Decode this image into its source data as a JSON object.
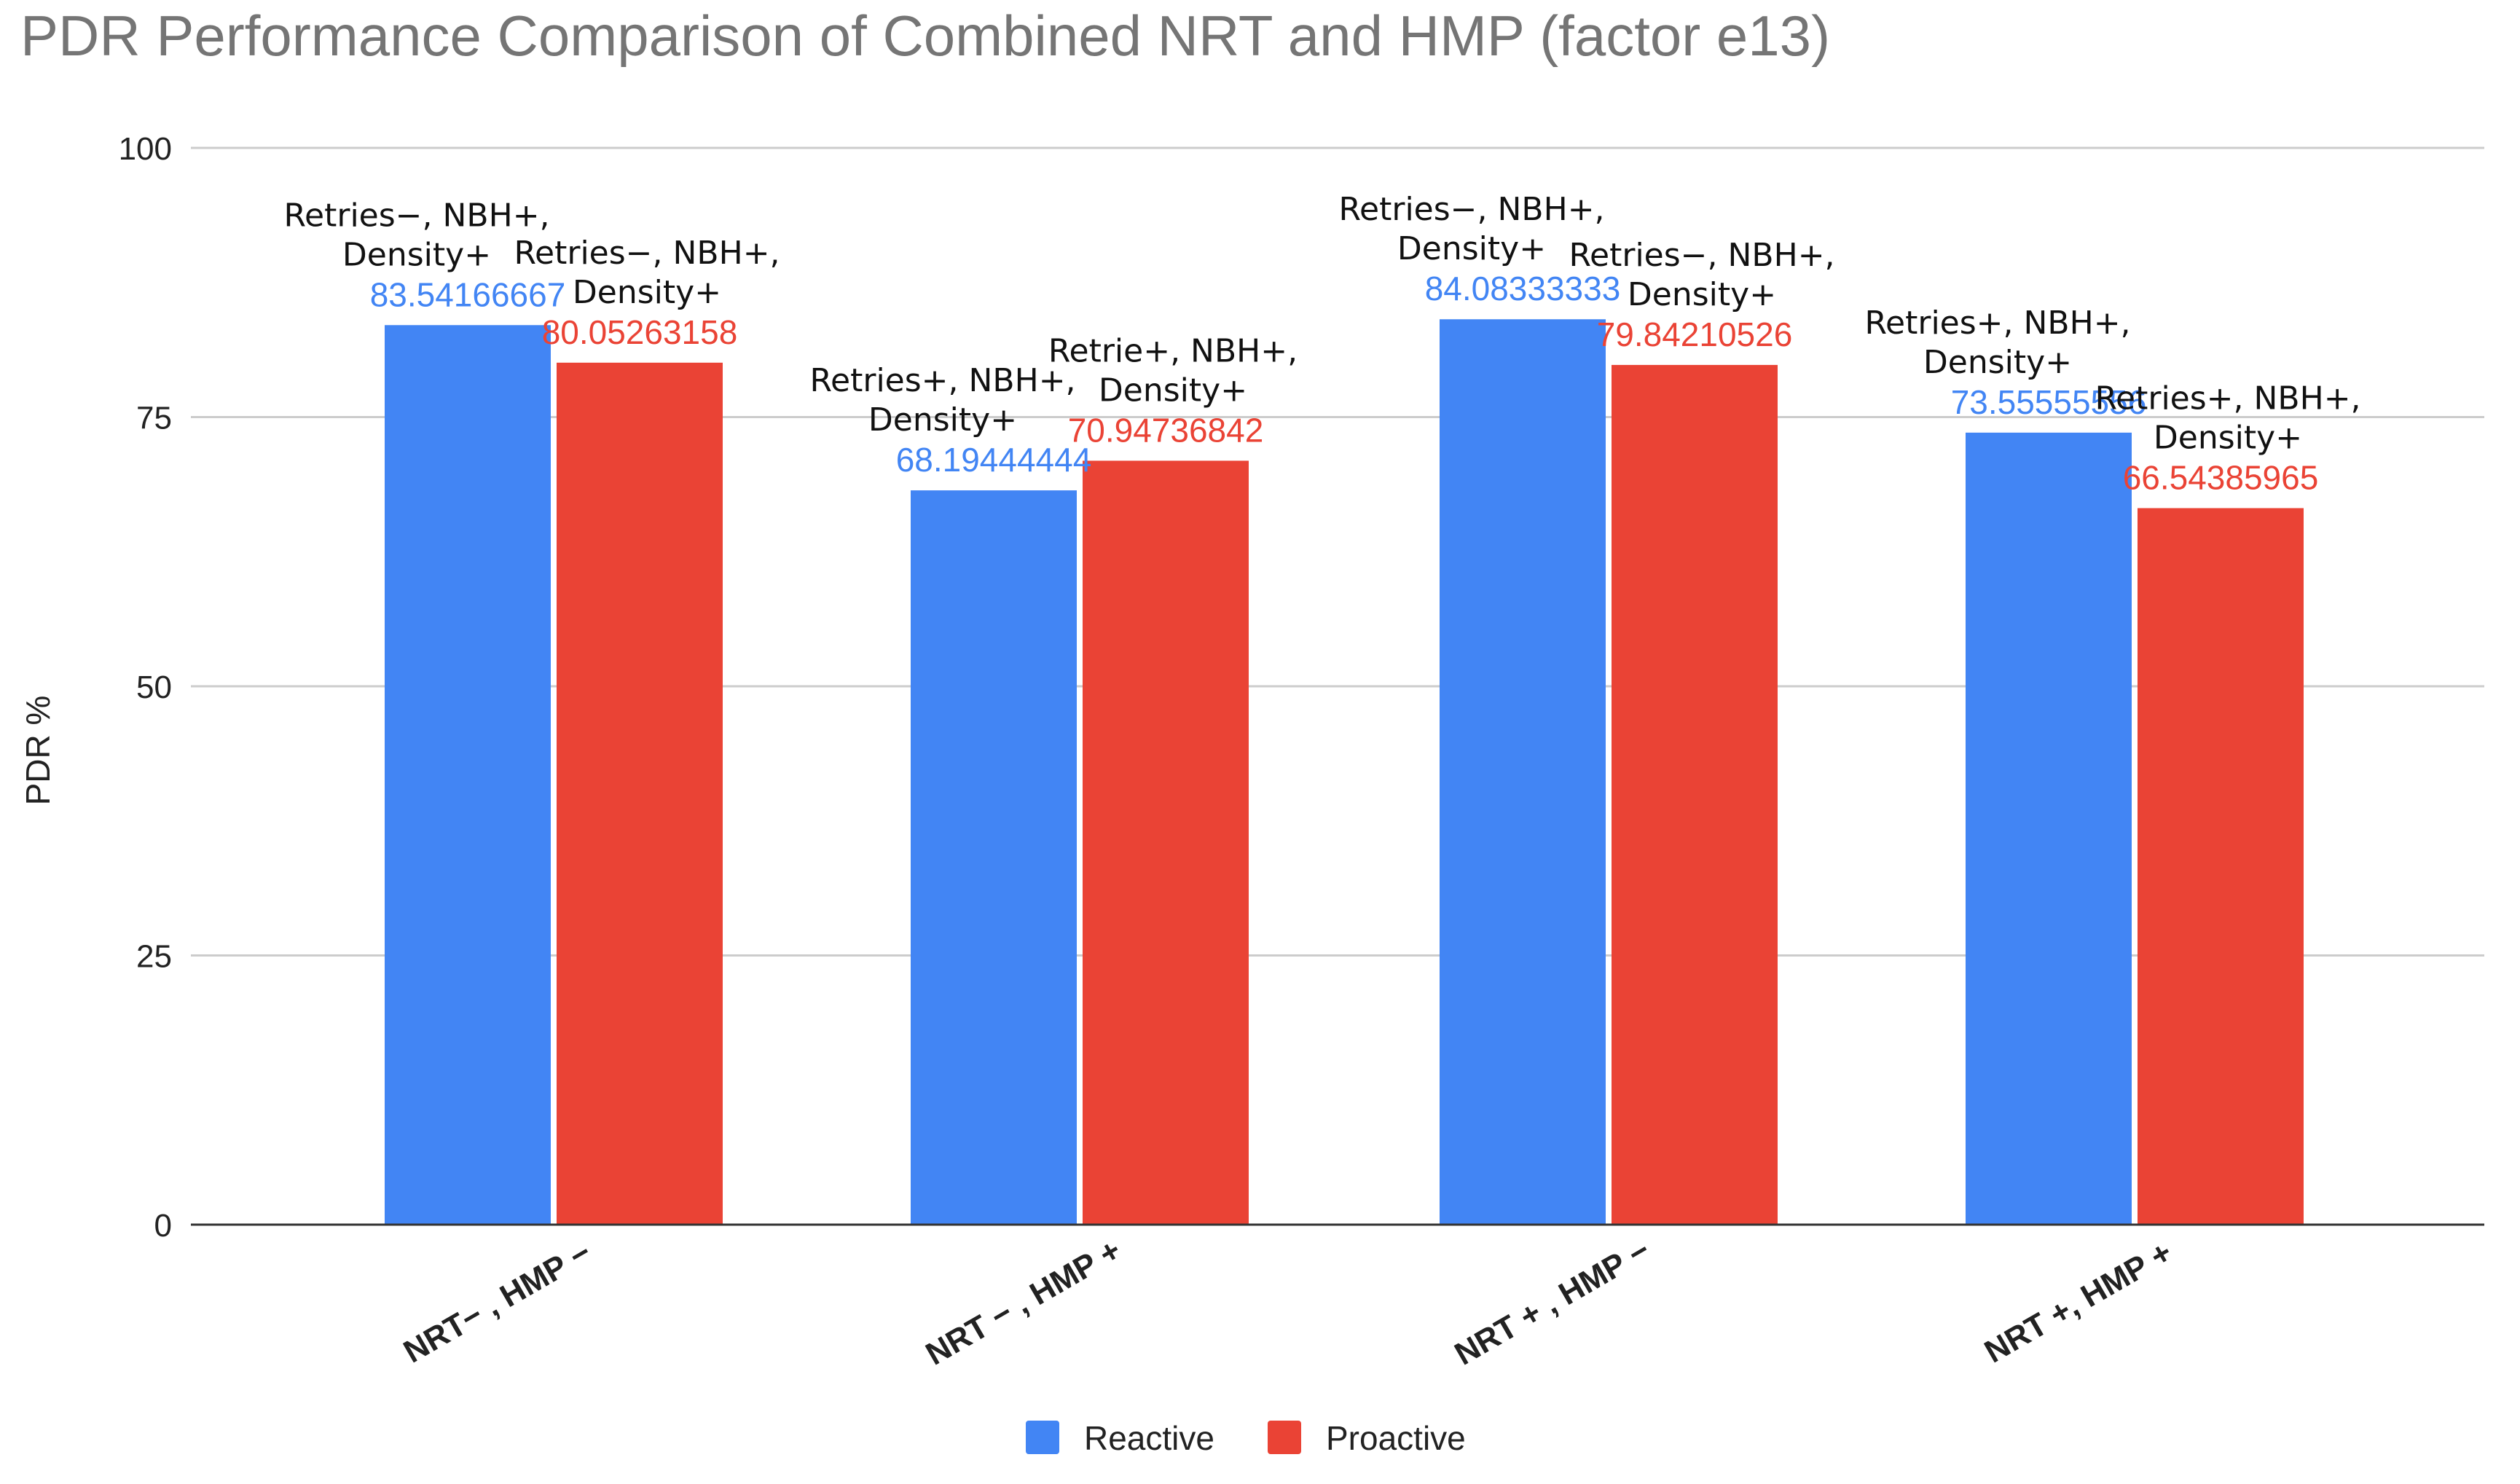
{
  "chart_data": {
    "type": "bar",
    "title": "PDR  Performance Comparison of Combined NRT and HMP (factor e13)",
    "xlabel": "",
    "ylabel": "PDR %",
    "ylim": [
      0,
      100
    ],
    "yticks": [
      0,
      25,
      50,
      75,
      100
    ],
    "grid": true,
    "legend_position": "bottom-center",
    "categories": [
      "NRT− , HMP −",
      "NRT − , HMP +",
      "NRT + , HMP −",
      "NRT +, HMP +"
    ],
    "series": [
      {
        "name": "Reactive",
        "color": "#4285f4",
        "values": [
          83.54166667,
          68.19444444,
          84.08333333,
          73.55555556
        ],
        "value_labels": [
          "83.54166667",
          "68.19444444",
          "84.08333333",
          "73.55555556"
        ],
        "annotations": [
          [
            "Retries−, NBH+,",
            "Density+"
          ],
          [
            "Retries+, NBH+,",
            "Density+"
          ],
          [
            "Retries−, NBH+,",
            "Density+"
          ],
          [
            "Retries+, NBH+,",
            "Density+"
          ]
        ]
      },
      {
        "name": "Proactive",
        "color": "#ea4335",
        "values": [
          80.05263158,
          70.94736842,
          79.84210526,
          66.54385965
        ],
        "value_labels": [
          "80.05263158",
          "70.94736842",
          "79.84210526",
          "66.54385965"
        ],
        "annotations": [
          [
            "Retries−, NBH+,",
            "Density+"
          ],
          [
            "Retrie+, NBH+,",
            "Density+"
          ],
          [
            "Retries−, NBH+,",
            "Density+"
          ],
          [
            "Retries+, NBH+,",
            "Density+"
          ]
        ]
      }
    ]
  },
  "colors": {
    "title": "#757575",
    "axis_text": "#222222",
    "gridline": "#cccccc",
    "baseline": "#333333",
    "annotation": "#111111"
  }
}
